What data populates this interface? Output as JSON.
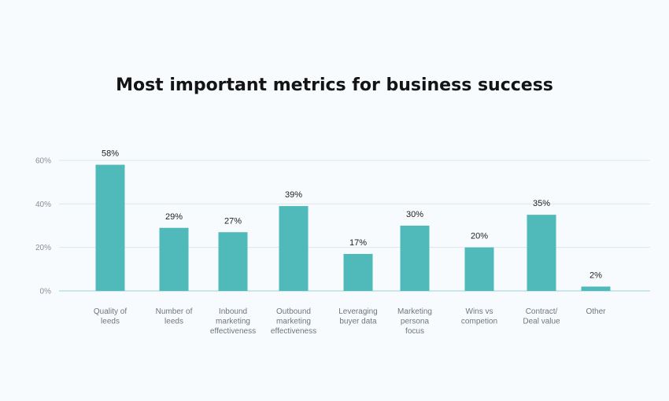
{
  "chart_data": {
    "type": "bar",
    "title": "Most important metrics for business success",
    "categories": [
      [
        "Quality of",
        "leeds"
      ],
      [
        "Number of",
        "leeds"
      ],
      [
        "Inbound",
        "marketing",
        "effectiveness"
      ],
      [
        "Outbound",
        "marketing",
        "effectiveness"
      ],
      [
        "Leveraging",
        "buyer data"
      ],
      [
        "Marketing",
        "persona",
        "focus"
      ],
      [
        "Wins vs",
        "competion"
      ],
      [
        "Contract/",
        "Deal value"
      ],
      [
        "Other"
      ]
    ],
    "values": [
      58,
      29,
      27,
      39,
      17,
      30,
      20,
      35,
      2
    ],
    "value_labels": [
      "58%",
      "29%",
      "27%",
      "39%",
      "17%",
      "30%",
      "20%",
      "35%",
      "2%"
    ],
    "y_ticks": [
      0,
      20,
      40,
      60
    ],
    "y_tick_labels": [
      "0%",
      "20%",
      "40%",
      "60%"
    ],
    "ylim": [
      0,
      60
    ],
    "grid": true,
    "legend": "none",
    "bar_color": "#4fbab9",
    "grid_color": "#dde7ec",
    "axis_color": "#9fd3d3"
  }
}
